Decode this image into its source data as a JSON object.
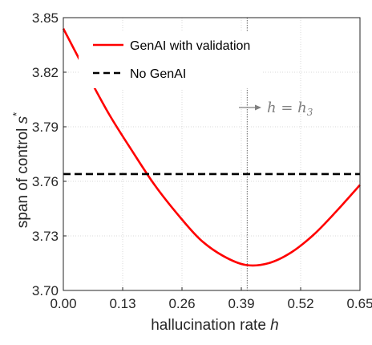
{
  "chart_data": {
    "type": "line",
    "xlabel_text": "hallucination rate ",
    "xlabel_var": "h",
    "ylabel_text": "span of control ",
    "ylabel_var": "s",
    "ylabel_sup": "*",
    "xlim": [
      0,
      0.65
    ],
    "ylim": [
      3.7,
      3.85
    ],
    "xticks": [
      0,
      0.13,
      0.26,
      0.39,
      0.52,
      0.65
    ],
    "xtick_labels": [
      "0.00",
      "0.13",
      "0.26",
      "0.39",
      "0.52",
      "0.65"
    ],
    "yticks": [
      3.7,
      3.73,
      3.76,
      3.79,
      3.82,
      3.85
    ],
    "ytick_labels": [
      "3.70",
      "3.73",
      "3.76",
      "3.79",
      "3.82",
      "3.85"
    ],
    "grid": true,
    "legend_position": "top-left",
    "series": [
      {
        "name": "GenAI with validation",
        "style": "solid",
        "color": "#ff0000",
        "x": [
          0,
          0.05,
          0.1,
          0.15,
          0.2,
          0.25,
          0.3,
          0.35,
          0.4,
          0.45,
          0.5,
          0.55,
          0.6,
          0.65
        ],
        "y": [
          3.844,
          3.82,
          3.797,
          3.777,
          3.758,
          3.742,
          3.728,
          3.719,
          3.714,
          3.715,
          3.721,
          3.731,
          3.744,
          3.758
        ]
      },
      {
        "name": "No GenAI",
        "style": "dashed",
        "color": "#000000",
        "x": [
          0,
          0.65
        ],
        "y": [
          3.764,
          3.764
        ]
      }
    ],
    "vline": {
      "x": 0.403,
      "color": "#808080",
      "style": "dotted"
    },
    "annotation": {
      "text": "h = h",
      "sub": "3",
      "x": 0.403,
      "y": 3.813
    }
  }
}
